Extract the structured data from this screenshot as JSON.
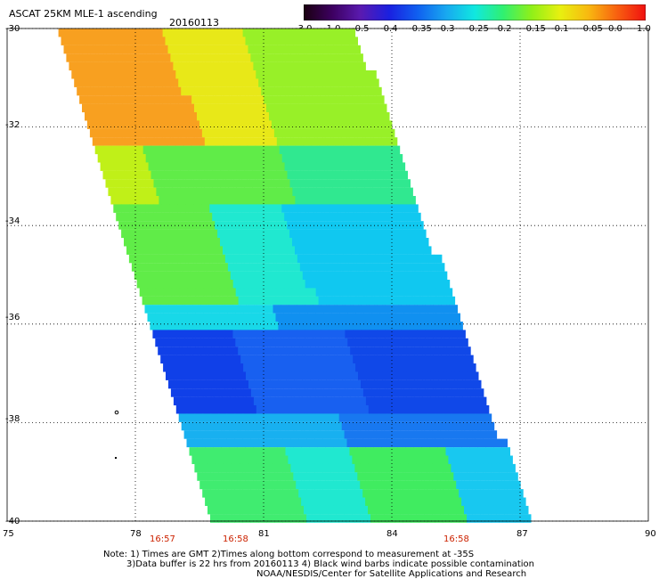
{
  "header": {
    "title": "ASCAT 25KM MLE-1 ascending",
    "date": "20160113"
  },
  "colorbar": {
    "labels": [
      "-3.0",
      "-1.0",
      "-0.5",
      "-0.4",
      "-0.35",
      "-0.3",
      "-0.25",
      "-0.2",
      "-0.15",
      "-0.1",
      "-0.05",
      "0.0",
      "1.0"
    ],
    "colors": [
      "#1a0010",
      "#3d0060",
      "#5a1ab0",
      "#1a20e0",
      "#1060f0",
      "#18a8f0",
      "#10e8e0",
      "#30f070",
      "#90f018",
      "#e8f010",
      "#f8b810",
      "#f86010",
      "#f01010"
    ]
  },
  "axes": {
    "lat_labels": [
      "-30",
      "-32",
      "-34",
      "-36",
      "-38",
      "-40"
    ],
    "lon_labels": [
      "75",
      "78",
      "81",
      "84",
      "87",
      "90"
    ]
  },
  "times": [
    "16:57",
    "16:58",
    "16:58"
  ],
  "notes": {
    "line1": "Note: 1) Times are GMT 2)Times along bottom correspond to measurement at -35S",
    "line2": "3)Data buffer is 22 hrs from 20160113 4) Black wind barbs indicate possible contamination",
    "line3": "NOAA/NESDIS/Center for Satellite Applications and Research"
  }
}
